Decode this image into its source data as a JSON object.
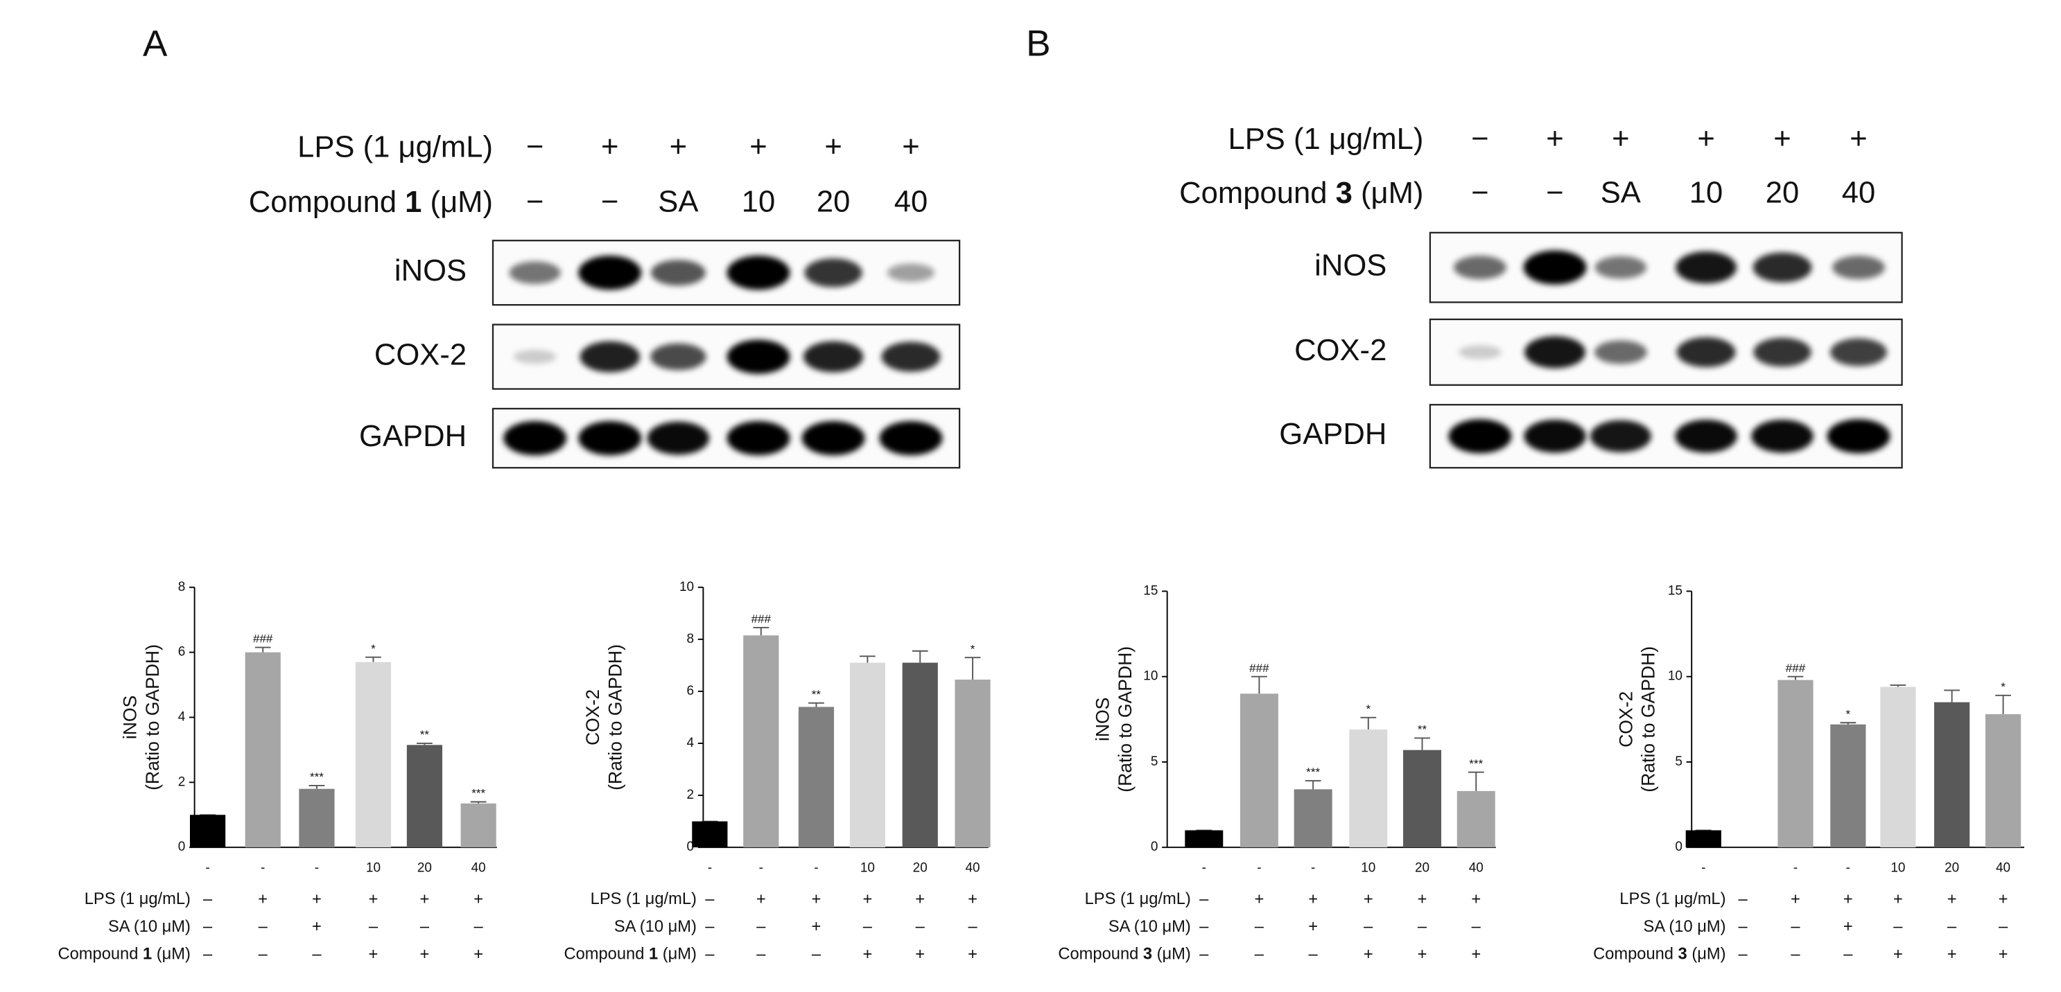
{
  "panels": [
    {
      "letter": "A",
      "rows": [
        {
          "label_parts": [
            "LPS (1 μg/mL)"
          ],
          "lanes": [
            "−",
            "+",
            "+",
            "+",
            "+",
            "+"
          ]
        },
        {
          "label_parts": [
            "Compound ",
            "1",
            " (μM)"
          ],
          "lanes": [
            "−",
            "−",
            "SA",
            "10",
            "20",
            "40"
          ]
        }
      ],
      "blots": [
        "iNOS",
        "COX-2",
        "GAPDH"
      ]
    },
    {
      "letter": "B",
      "rows": [
        {
          "label_parts": [
            "LPS (1 μg/mL)"
          ],
          "lanes": [
            "−",
            "+",
            "+",
            "+",
            "+",
            "+"
          ]
        },
        {
          "label_parts": [
            "Compound ",
            "3",
            " (μM)"
          ],
          "lanes": [
            "−",
            "−",
            "SA",
            "10",
            "20",
            "40"
          ]
        }
      ],
      "blots": [
        "iNOS",
        "COX-2",
        "GAPDH"
      ]
    }
  ],
  "chart_data": [
    {
      "type": "bar",
      "ylabel": [
        "iNOS",
        "(Ratio to GAPDH)"
      ],
      "categories": [
        "-",
        "-",
        "-",
        "10",
        "20",
        "40"
      ],
      "values": [
        1.0,
        6.0,
        1.8,
        5.7,
        3.15,
        1.35
      ],
      "errors": [
        0,
        0.15,
        0.1,
        0.15,
        0.05,
        0.05
      ],
      "significance": [
        null,
        "###",
        "***",
        "*",
        "**",
        "***"
      ],
      "colors": [
        "#000000",
        "#a6a6a6",
        "#808080",
        "#d9d9d9",
        "#595959",
        "#a6a6a6"
      ],
      "ylim": [
        0,
        8
      ],
      "yticks": [
        0,
        2,
        4,
        6,
        8
      ],
      "rows": [
        {
          "label_parts": [
            "LPS (1 μg/mL)"
          ],
          "marks": [
            "–",
            "+",
            "+",
            "+",
            "+",
            "+"
          ]
        },
        {
          "label_parts": [
            "SA (10 μM)"
          ],
          "marks": [
            "–",
            "–",
            "+",
            "–",
            "–",
            "–"
          ]
        },
        {
          "label_parts": [
            "Compound ",
            "1",
            " (μM)"
          ],
          "marks": [
            "–",
            "–",
            "–",
            "+",
            "+",
            "+"
          ]
        }
      ]
    },
    {
      "type": "bar",
      "ylabel": [
        "COX-2",
        "(Ratio to GAPDH)"
      ],
      "categories": [
        "-",
        "-",
        "-",
        "10",
        "20",
        "40"
      ],
      "values": [
        1.0,
        8.15,
        5.4,
        7.1,
        7.1,
        6.45
      ],
      "errors": [
        0,
        0.3,
        0.15,
        0.25,
        0.45,
        0.85
      ],
      "significance": [
        null,
        "###",
        "**",
        null,
        null,
        "*"
      ],
      "colors": [
        "#000000",
        "#a6a6a6",
        "#808080",
        "#d9d9d9",
        "#595959",
        "#a6a6a6"
      ],
      "ylim": [
        0,
        10
      ],
      "yticks": [
        0,
        2,
        4,
        6,
        8,
        10
      ],
      "rows": [
        {
          "label_parts": [
            "LPS (1 μg/mL)"
          ],
          "marks": [
            "–",
            "+",
            "+",
            "+",
            "+",
            "+"
          ]
        },
        {
          "label_parts": [
            "SA (10 μM)"
          ],
          "marks": [
            "–",
            "–",
            "+",
            "–",
            "–",
            "–"
          ]
        },
        {
          "label_parts": [
            "Compound ",
            "1",
            " (μM)"
          ],
          "marks": [
            "–",
            "–",
            "–",
            "+",
            "+",
            "+"
          ]
        }
      ]
    },
    {
      "type": "bar",
      "ylabel": [
        "iNOS",
        "(Ratio to GAPDH)"
      ],
      "categories": [
        "-",
        "-",
        "-",
        "10",
        "20",
        "40"
      ],
      "values": [
        1.0,
        9.0,
        3.4,
        6.9,
        5.7,
        3.3
      ],
      "errors": [
        0,
        1.0,
        0.5,
        0.7,
        0.7,
        1.1
      ],
      "significance": [
        null,
        "###",
        "***",
        "*",
        "**",
        "***"
      ],
      "colors": [
        "#000000",
        "#a6a6a6",
        "#808080",
        "#d9d9d9",
        "#595959",
        "#a6a6a6"
      ],
      "ylim": [
        0,
        15
      ],
      "yticks": [
        0,
        5,
        10,
        15
      ],
      "rows": [
        {
          "label_parts": [
            "LPS (1 μg/mL)"
          ],
          "marks": [
            "–",
            "+",
            "+",
            "+",
            "+",
            "+"
          ]
        },
        {
          "label_parts": [
            "SA (10 μM)"
          ],
          "marks": [
            "–",
            "–",
            "+",
            "–",
            "–",
            "–"
          ]
        },
        {
          "label_parts": [
            "Compound ",
            "3",
            " (μM)"
          ],
          "marks": [
            "–",
            "–",
            "–",
            "+",
            "+",
            "+"
          ]
        }
      ]
    },
    {
      "type": "bar",
      "ylabel": [
        "COX-2",
        "(Ratio to GAPDH)"
      ],
      "categories": [
        "-",
        "-",
        "-",
        "10",
        "20",
        "40"
      ],
      "values": [
        1.0,
        9.8,
        7.2,
        9.4,
        8.5,
        7.8
      ],
      "errors": [
        0,
        0.2,
        0.1,
        0.1,
        0.7,
        1.1
      ],
      "significance": [
        null,
        "###",
        "*",
        null,
        null,
        "*"
      ],
      "colors": [
        "#000000",
        "#a6a6a6",
        "#808080",
        "#d9d9d9",
        "#595959",
        "#a6a6a6"
      ],
      "ylim": [
        0,
        15
      ],
      "yticks": [
        0,
        5,
        10,
        15
      ],
      "rows": [
        {
          "label_parts": [
            "LPS (1 μg/mL)"
          ],
          "marks": [
            "–",
            "+",
            "+",
            "+",
            "+",
            "+"
          ]
        },
        {
          "label_parts": [
            "SA (10 μM)"
          ],
          "marks": [
            "–",
            "–",
            "+",
            "–",
            "–",
            "–"
          ]
        },
        {
          "label_parts": [
            "Compound ",
            "3",
            " (μM)"
          ],
          "marks": [
            "–",
            "–",
            "–",
            "+",
            "+",
            "+"
          ]
        }
      ]
    }
  ]
}
